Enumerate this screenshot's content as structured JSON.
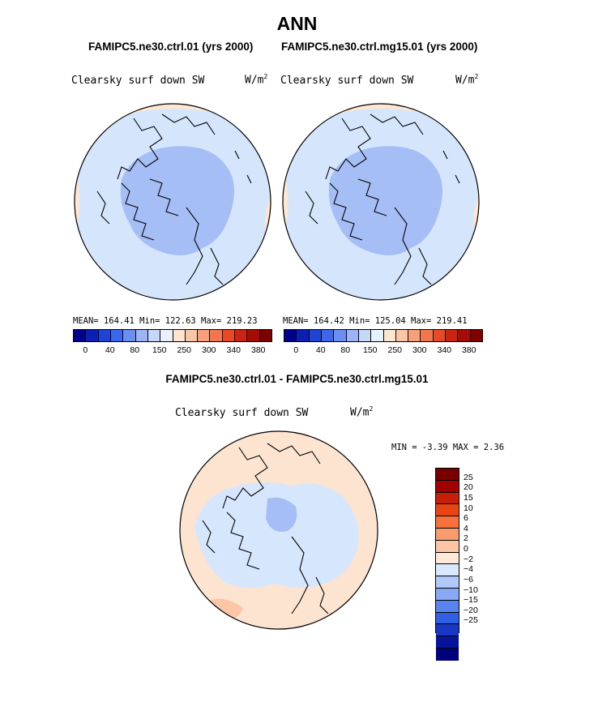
{
  "figure": {
    "title": "ANN",
    "panels": [
      {
        "case": "FAMIPC5.ne30.ctrl.01 (yrs 2000)",
        "variable": "Clearsky surf down SW",
        "units": "W/m",
        "units_sup": "2",
        "stats": "MEAN= 164.41  Min= 122.63  Max= 219.23"
      },
      {
        "case": "FAMIPC5.ne30.ctrl.mg15.01 (yrs 2000)",
        "variable": "Clearsky surf down SW",
        "units": "W/m",
        "units_sup": "2",
        "stats": "MEAN= 164.42  Min= 125.04  Max= 219.41"
      }
    ],
    "diff_title": "FAMIPC5.ne30.ctrl.01 - FAMIPC5.ne30.ctrl.mg15.01",
    "diff_panel": {
      "variable": "Clearsky surf down SW",
      "units": "W/m",
      "units_sup": "2",
      "minmax": "MIN =   -3.39 MAX =    2.36"
    }
  },
  "chart_data": [
    {
      "type": "heatmap",
      "projection": "north polar stereographic",
      "title": "FAMIPC5.ne30.ctrl.01 (yrs 2000)",
      "variable": "Clearsky surf down SW",
      "units": "W/m2",
      "mean": 164.41,
      "min": 122.63,
      "max": 219.23,
      "colorbar_labels": [
        "0",
        "40",
        "80",
        "150",
        "250",
        "300",
        "340",
        "380"
      ]
    },
    {
      "type": "heatmap",
      "projection": "north polar stereographic",
      "title": "FAMIPC5.ne30.ctrl.mg15.01 (yrs 2000)",
      "variable": "Clearsky surf down SW",
      "units": "W/m2",
      "mean": 164.42,
      "min": 125.04,
      "max": 219.41,
      "colorbar_labels": [
        "0",
        "40",
        "80",
        "150",
        "250",
        "300",
        "340",
        "380"
      ]
    },
    {
      "type": "heatmap",
      "projection": "north polar stereographic",
      "title": "FAMIPC5.ne30.ctrl.01 - FAMIPC5.ne30.ctrl.mg15.01",
      "variable": "Clearsky surf down SW",
      "units": "W/m2",
      "min": -3.39,
      "max": 2.36,
      "colorbar_labels": [
        "25",
        "20",
        "15",
        "10",
        "6",
        "4",
        "2",
        "0",
        "−2",
        "−4",
        "−6",
        "−10",
        "−15",
        "−20",
        "−25"
      ]
    }
  ],
  "colors": {
    "abs_scale": [
      "#00008c",
      "#0a1fb4",
      "#1f44d4",
      "#3c66ec",
      "#6a8ef2",
      "#9bb4f6",
      "#c5d8fa",
      "#e8f2fe",
      "#fde5d0",
      "#fbc6a6",
      "#f8a07a",
      "#f3764c",
      "#e84a26",
      "#cc2410",
      "#a60c04",
      "#800000"
    ],
    "diff_scale": [
      "#7a0000",
      "#a00000",
      "#c81e08",
      "#e84414",
      "#f8703c",
      "#f89c6e",
      "#fcc6a4",
      "#fee9d8",
      "#d9e8fc",
      "#b1c9f8",
      "#88aaf4",
      "#5784ee",
      "#3060e4",
      "#1638c4",
      "#06149c",
      "#00007a"
    ],
    "cold": "#a6bef6",
    "mid": "#d5e6fc",
    "warm": "#fde6d2",
    "diff_warm": "#fde4d0",
    "diff_cool": "#d6e6fc"
  }
}
